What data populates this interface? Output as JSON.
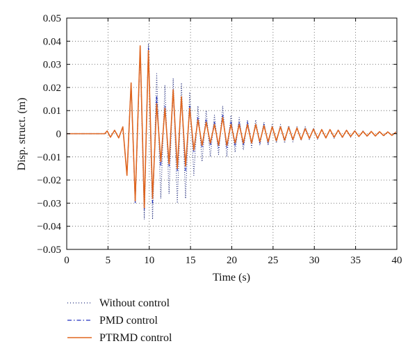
{
  "chart_data": {
    "type": "line",
    "title": "",
    "xlabel": "Time (s)",
    "ylabel": "Disp. struct. (m)",
    "xlim": [
      0,
      40
    ],
    "ylim": [
      -0.05,
      0.05
    ],
    "xticks": [
      0,
      5,
      10,
      15,
      20,
      25,
      30,
      35,
      40
    ],
    "yticks": [
      -0.05,
      -0.04,
      -0.03,
      -0.02,
      -0.01,
      0,
      0.01,
      0.02,
      0.03,
      0.04,
      0.05
    ],
    "xtick_labels": [
      "0",
      "5",
      "10",
      "15",
      "20",
      "25",
      "30",
      "35",
      "40"
    ],
    "ytick_labels": [
      "−0.05",
      "−0.04",
      "−0.03",
      "−0.02",
      "−0.01",
      "0",
      "0.01",
      "0.02",
      "0.03",
      "0.04",
      "0.05"
    ],
    "grid": true,
    "legend_position": "below-left",
    "series": [
      {
        "name": "Without control",
        "style": "dotted",
        "color": "#1f2a7a",
        "peaks": [
          [
            4.9,
            0.0012
          ],
          [
            5.3,
            -0.0015
          ],
          [
            5.8,
            0.0015
          ],
          [
            6.3,
            -0.0018
          ],
          [
            6.8,
            0.003
          ],
          [
            7.3,
            -0.018
          ],
          [
            7.8,
            0.022
          ],
          [
            8.3,
            -0.03
          ],
          [
            8.9,
            0.037
          ],
          [
            9.4,
            -0.037
          ],
          [
            9.9,
            0.039
          ],
          [
            10.4,
            -0.037
          ],
          [
            10.9,
            0.026
          ],
          [
            11.4,
            -0.028
          ],
          [
            11.9,
            0.021
          ],
          [
            12.4,
            -0.026
          ],
          [
            12.9,
            0.024
          ],
          [
            13.4,
            -0.03
          ],
          [
            13.9,
            0.022
          ],
          [
            14.4,
            -0.028
          ],
          [
            14.9,
            0.018
          ],
          [
            15.4,
            -0.018
          ],
          [
            15.9,
            0.012
          ],
          [
            16.4,
            -0.012
          ],
          [
            16.9,
            0.01
          ],
          [
            17.4,
            -0.01
          ],
          [
            17.9,
            0.008
          ],
          [
            18.4,
            -0.009
          ],
          [
            18.9,
            0.012
          ],
          [
            19.4,
            -0.01
          ],
          [
            19.9,
            0.008
          ],
          [
            20.4,
            -0.008
          ],
          [
            20.9,
            0.007
          ],
          [
            21.4,
            -0.007
          ],
          [
            21.9,
            0.006
          ],
          [
            22.4,
            -0.006
          ],
          [
            22.9,
            0.006
          ],
          [
            23.4,
            -0.005
          ],
          [
            23.9,
            0.005
          ],
          [
            24.4,
            -0.005
          ],
          [
            24.9,
            0.004
          ],
          [
            25.4,
            -0.004
          ],
          [
            25.9,
            0.004
          ],
          [
            26.4,
            -0.004
          ],
          [
            26.9,
            0.0035
          ],
          [
            27.4,
            -0.0035
          ],
          [
            27.9,
            0.003
          ],
          [
            28.4,
            -0.003
          ],
          [
            28.9,
            0.003
          ],
          [
            29.4,
            -0.0025
          ],
          [
            29.9,
            0.0025
          ],
          [
            30.4,
            -0.0025
          ],
          [
            30.9,
            0.002
          ],
          [
            31.4,
            -0.002
          ],
          [
            31.9,
            0.002
          ],
          [
            32.4,
            -0.002
          ],
          [
            32.9,
            0.0018
          ],
          [
            33.4,
            -0.0018
          ],
          [
            33.9,
            0.0015
          ],
          [
            34.4,
            -0.0015
          ],
          [
            34.9,
            0.0015
          ],
          [
            35.4,
            -0.0012
          ],
          [
            35.9,
            0.0012
          ],
          [
            36.4,
            -0.0012
          ],
          [
            36.9,
            0.001
          ],
          [
            37.4,
            -0.001
          ],
          [
            37.9,
            0.001
          ],
          [
            38.4,
            -0.001
          ],
          [
            38.9,
            0.0008
          ],
          [
            39.4,
            -0.0008
          ],
          [
            39.9,
            0.0008
          ]
        ]
      },
      {
        "name": "PMD control",
        "style": "dashdot",
        "color": "#1f2fbf",
        "peaks": [
          [
            4.9,
            0.0012
          ],
          [
            5.3,
            -0.0015
          ],
          [
            5.8,
            0.0015
          ],
          [
            6.3,
            -0.0018
          ],
          [
            6.8,
            0.003
          ],
          [
            7.3,
            -0.018
          ],
          [
            7.8,
            0.022
          ],
          [
            8.3,
            -0.03
          ],
          [
            8.9,
            0.037
          ],
          [
            9.4,
            -0.033
          ],
          [
            9.9,
            0.037
          ],
          [
            10.4,
            -0.03
          ],
          [
            10.9,
            0.016
          ],
          [
            11.4,
            -0.014
          ],
          [
            11.9,
            0.012
          ],
          [
            12.4,
            -0.014
          ],
          [
            12.9,
            0.018
          ],
          [
            13.4,
            -0.016
          ],
          [
            13.9,
            0.016
          ],
          [
            14.4,
            -0.016
          ],
          [
            14.9,
            0.012
          ],
          [
            15.4,
            -0.008
          ],
          [
            15.9,
            0.007
          ],
          [
            16.4,
            -0.006
          ],
          [
            16.9,
            0.006
          ],
          [
            17.4,
            -0.005
          ],
          [
            17.9,
            0.005
          ],
          [
            18.4,
            -0.006
          ],
          [
            18.9,
            0.008
          ],
          [
            19.4,
            -0.006
          ],
          [
            19.9,
            0.005
          ],
          [
            20.4,
            -0.005
          ],
          [
            20.9,
            0.005
          ],
          [
            21.4,
            -0.005
          ],
          [
            21.9,
            0.005
          ],
          [
            22.4,
            -0.004
          ],
          [
            22.9,
            0.004
          ],
          [
            23.4,
            -0.004
          ],
          [
            23.9,
            0.004
          ],
          [
            24.4,
            -0.004
          ],
          [
            24.9,
            0.003
          ],
          [
            25.4,
            -0.003
          ],
          [
            25.9,
            0.003
          ],
          [
            26.4,
            -0.003
          ],
          [
            26.9,
            0.003
          ],
          [
            27.4,
            -0.0025
          ],
          [
            27.9,
            0.0025
          ],
          [
            28.4,
            -0.0025
          ],
          [
            28.9,
            0.0025
          ],
          [
            29.4,
            -0.002
          ],
          [
            29.9,
            0.002
          ],
          [
            30.4,
            -0.002
          ],
          [
            30.9,
            0.0018
          ],
          [
            31.4,
            -0.0018
          ],
          [
            31.9,
            0.0018
          ],
          [
            32.4,
            -0.0015
          ],
          [
            32.9,
            0.0015
          ],
          [
            33.4,
            -0.0015
          ],
          [
            33.9,
            0.0015
          ],
          [
            34.4,
            -0.0012
          ],
          [
            34.9,
            0.0012
          ],
          [
            35.4,
            -0.0012
          ],
          [
            35.9,
            0.001
          ],
          [
            36.4,
            -0.001
          ],
          [
            36.9,
            0.001
          ],
          [
            37.4,
            -0.001
          ],
          [
            37.9,
            0.0008
          ],
          [
            38.4,
            -0.0008
          ],
          [
            38.9,
            0.0008
          ],
          [
            39.4,
            -0.0007
          ],
          [
            39.9,
            0.0007
          ]
        ]
      },
      {
        "name": "PTRMD control",
        "style": "solid",
        "color": "#e0661f",
        "peaks": [
          [
            4.9,
            0.0012
          ],
          [
            5.3,
            -0.0015
          ],
          [
            5.8,
            0.0015
          ],
          [
            6.3,
            -0.0018
          ],
          [
            6.8,
            0.003
          ],
          [
            7.3,
            -0.018
          ],
          [
            7.8,
            0.022
          ],
          [
            8.3,
            -0.029
          ],
          [
            8.9,
            0.038
          ],
          [
            9.4,
            -0.032
          ],
          [
            9.9,
            0.036
          ],
          [
            10.4,
            -0.028
          ],
          [
            10.9,
            0.013
          ],
          [
            11.4,
            -0.012
          ],
          [
            11.9,
            0.011
          ],
          [
            12.4,
            -0.013
          ],
          [
            12.9,
            0.019
          ],
          [
            13.4,
            -0.015
          ],
          [
            13.9,
            0.016
          ],
          [
            14.4,
            -0.014
          ],
          [
            14.9,
            0.011
          ],
          [
            15.4,
            -0.007
          ],
          [
            15.9,
            0.006
          ],
          [
            16.4,
            -0.005
          ],
          [
            16.9,
            0.005
          ],
          [
            17.4,
            -0.004
          ],
          [
            17.9,
            0.004
          ],
          [
            18.4,
            -0.005
          ],
          [
            18.9,
            0.007
          ],
          [
            19.4,
            -0.005
          ],
          [
            19.9,
            0.004
          ],
          [
            20.4,
            -0.004
          ],
          [
            20.9,
            0.004
          ],
          [
            21.4,
            -0.004
          ],
          [
            21.9,
            0.004
          ],
          [
            22.4,
            -0.004
          ],
          [
            22.9,
            0.004
          ],
          [
            23.4,
            -0.0035
          ],
          [
            23.9,
            0.0035
          ],
          [
            24.4,
            -0.0035
          ],
          [
            24.9,
            0.003
          ],
          [
            25.4,
            -0.003
          ],
          [
            25.9,
            0.003
          ],
          [
            26.4,
            -0.0028
          ],
          [
            26.9,
            0.0028
          ],
          [
            27.4,
            -0.0025
          ],
          [
            27.9,
            0.0025
          ],
          [
            28.4,
            -0.0025
          ],
          [
            28.9,
            0.0022
          ],
          [
            29.4,
            -0.002
          ],
          [
            29.9,
            0.002
          ],
          [
            30.4,
            -0.002
          ],
          [
            30.9,
            0.0018
          ],
          [
            31.4,
            -0.0018
          ],
          [
            31.9,
            0.0018
          ],
          [
            32.4,
            -0.0015
          ],
          [
            32.9,
            0.0015
          ],
          [
            33.4,
            -0.0015
          ],
          [
            33.9,
            0.0015
          ],
          [
            34.4,
            -0.0012
          ],
          [
            34.9,
            0.0012
          ],
          [
            35.4,
            -0.0012
          ],
          [
            35.9,
            0.001
          ],
          [
            36.4,
            -0.001
          ],
          [
            36.9,
            0.001
          ],
          [
            37.4,
            -0.001
          ],
          [
            37.9,
            0.0009
          ],
          [
            38.4,
            -0.0008
          ],
          [
            38.9,
            0.0008
          ],
          [
            39.4,
            -0.0007
          ],
          [
            39.9,
            0.0007
          ]
        ]
      }
    ]
  }
}
